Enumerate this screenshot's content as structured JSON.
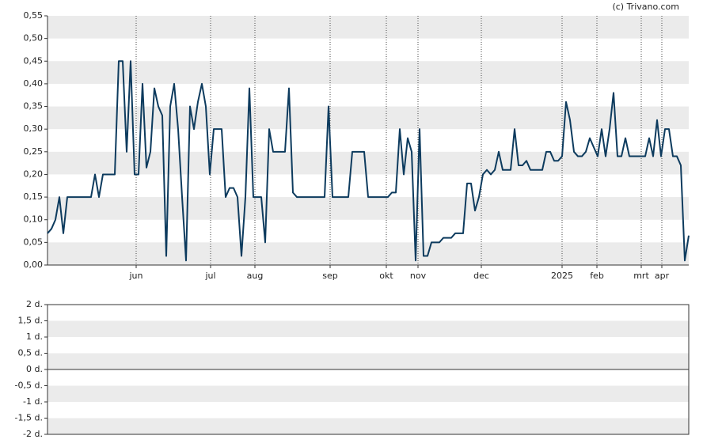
{
  "credit": "(c) Trivano.com",
  "chart_data": [
    {
      "type": "line",
      "color": "#0d3b5e",
      "bands": true,
      "values": [
        0.07,
        0.08,
        0.1,
        0.15,
        0.07,
        0.15,
        0.15,
        0.15,
        0.15,
        0.15,
        0.15,
        0.15,
        0.2,
        0.15,
        0.2,
        0.2,
        0.2,
        0.2,
        0.45,
        0.45,
        0.25,
        0.45,
        0.2,
        0.2,
        0.4,
        0.215,
        0.25,
        0.39,
        0.35,
        0.33,
        0.02,
        0.35,
        0.4,
        0.3,
        0.15,
        0.01,
        0.35,
        0.3,
        0.36,
        0.4,
        0.35,
        0.2,
        0.3,
        0.3,
        0.3,
        0.15,
        0.17,
        0.17,
        0.15,
        0.02,
        0.15,
        0.39,
        0.15,
        0.15,
        0.15,
        0.05,
        0.3,
        0.25,
        0.25,
        0.25,
        0.25,
        0.39,
        0.16,
        0.15,
        0.15,
        0.15,
        0.15,
        0.15,
        0.15,
        0.15,
        0.15,
        0.35,
        0.15,
        0.15,
        0.15,
        0.15,
        0.15,
        0.25,
        0.25,
        0.25,
        0.25,
        0.15,
        0.15,
        0.15,
        0.15,
        0.15,
        0.15,
        0.16,
        0.16,
        0.3,
        0.2,
        0.28,
        0.25,
        0.01,
        0.3,
        0.02,
        0.02,
        0.05,
        0.05,
        0.05,
        0.06,
        0.06,
        0.06,
        0.07,
        0.07,
        0.07,
        0.18,
        0.18,
        0.12,
        0.15,
        0.2,
        0.21,
        0.2,
        0.21,
        0.25,
        0.21,
        0.21,
        0.21,
        0.3,
        0.22,
        0.22,
        0.23,
        0.21,
        0.21,
        0.21,
        0.21,
        0.25,
        0.25,
        0.23,
        0.23,
        0.24,
        0.36,
        0.32,
        0.25,
        0.24,
        0.24,
        0.25,
        0.28,
        0.26,
        0.24,
        0.3,
        0.24,
        0.3,
        0.38,
        0.24,
        0.24,
        0.28,
        0.24,
        0.24,
        0.24,
        0.24,
        0.24,
        0.28,
        0.24,
        0.32,
        0.24,
        0.3,
        0.3,
        0.24,
        0.24,
        0.22,
        0.01,
        0.065
      ],
      "xlim": [
        0,
        162
      ],
      "xticks": [
        {
          "value": 22.4,
          "label": "jun"
        },
        {
          "value": 41.2,
          "label": "jul"
        },
        {
          "value": 52.4,
          "label": "aug"
        },
        {
          "value": 71.4,
          "label": "sep"
        },
        {
          "value": 85.6,
          "label": "okt"
        },
        {
          "value": 93.6,
          "label": "nov"
        },
        {
          "value": 109.6,
          "label": "dec"
        },
        {
          "value": 130,
          "label": "2025"
        },
        {
          "value": 138.8,
          "label": "feb"
        },
        {
          "value": 150,
          "label": "mrt"
        },
        {
          "value": 155.2,
          "label": "apr"
        }
      ],
      "ylim": [
        0,
        0.55
      ],
      "yticks": [
        {
          "value": 0,
          "label": "0,00"
        },
        {
          "value": 0.05,
          "label": "0,05"
        },
        {
          "value": 0.1,
          "label": "0,10"
        },
        {
          "value": 0.15,
          "label": "0,15"
        },
        {
          "value": 0.2,
          "label": "0,20"
        },
        {
          "value": 0.25,
          "label": "0,25"
        },
        {
          "value": 0.3,
          "label": "0,30"
        },
        {
          "value": 0.35,
          "label": "0,35"
        },
        {
          "value": 0.4,
          "label": "0,40"
        },
        {
          "value": 0.45,
          "label": "0,45"
        },
        {
          "value": 0.5,
          "label": "0,50"
        },
        {
          "value": 0.55,
          "label": "0,55"
        }
      ]
    },
    {
      "type": "line",
      "bands": true,
      "ylim": [
        -2,
        2
      ],
      "yticks": [
        {
          "value": -2,
          "label": "-2 d."
        },
        {
          "value": -1.5,
          "label": "-1,5 d."
        },
        {
          "value": -1,
          "label": "-1 d."
        },
        {
          "value": -0.5,
          "label": "-0,5 d."
        },
        {
          "value": 0,
          "label": "0 d."
        },
        {
          "value": 0.5,
          "label": "0,5 d."
        },
        {
          "value": 1,
          "label": "1 d."
        },
        {
          "value": 1.5,
          "label": "1,5 d."
        },
        {
          "value": 2,
          "label": "2 d."
        }
      ]
    }
  ]
}
